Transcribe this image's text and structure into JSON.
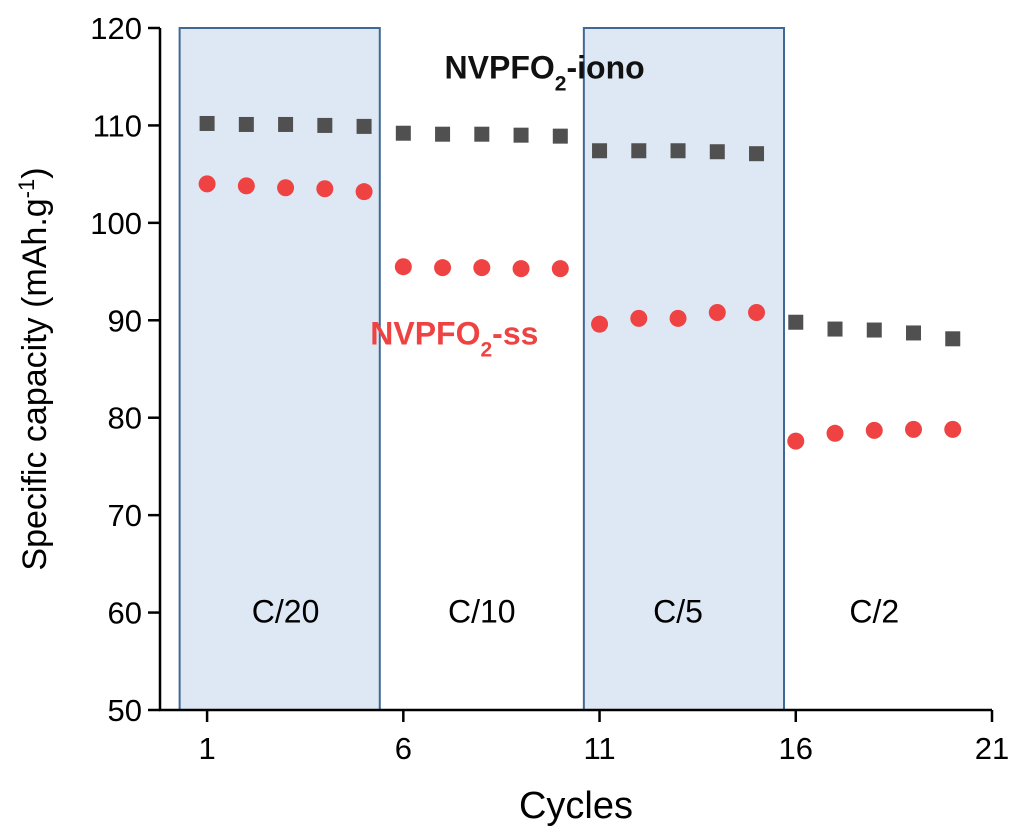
{
  "chart_data": {
    "type": "scatter",
    "xlabel": "Cycles",
    "ylabel": "Specific capacity (mAh.g",
    "ylabel_sup": "-1",
    "ylabel_close": ")",
    "xlim": [
      -0.2,
      21
    ],
    "ylim": [
      50,
      120
    ],
    "xticks": [
      1,
      6,
      11,
      16,
      21
    ],
    "yticks": [
      50,
      60,
      70,
      80,
      90,
      100,
      110,
      120
    ],
    "bands": [
      {
        "x0": 0.3,
        "x1": 5.4,
        "shaded": true,
        "label": "C/20",
        "label_x": 3.0
      },
      {
        "x0": 5.4,
        "x1": 10.6,
        "shaded": false,
        "label": "C/10",
        "label_x": 8.0
      },
      {
        "x0": 10.6,
        "x1": 15.7,
        "shaded": true,
        "label": "C/5",
        "label_x": 13.0
      },
      {
        "x0": 15.7,
        "x1": 21,
        "shaded": false,
        "label": "C/2",
        "label_x": 18.0
      }
    ],
    "band_label_y": 59,
    "series": [
      {
        "name": "NVPFO",
        "sub": "2",
        "suffix": "-iono",
        "marker": "square",
        "color": "#505050",
        "label_at": [
          9.6,
          114.8
        ],
        "x": [
          1,
          2,
          3,
          4,
          5,
          6,
          7,
          8,
          9,
          10,
          11,
          12,
          13,
          14,
          15,
          16,
          17,
          18,
          19,
          20
        ],
        "y": [
          110.2,
          110.1,
          110.1,
          110.0,
          109.9,
          109.2,
          109.1,
          109.1,
          109.0,
          108.9,
          107.4,
          107.4,
          107.4,
          107.3,
          107.1,
          89.8,
          89.1,
          89.0,
          88.7,
          88.1
        ]
      },
      {
        "name": "NVPFO",
        "sub": "2",
        "suffix": "-ss",
        "marker": "circle",
        "color": "#ef4343",
        "label_at": [
          7.3,
          87.5
        ],
        "x": [
          1,
          2,
          3,
          4,
          5,
          6,
          7,
          8,
          9,
          10,
          11,
          12,
          13,
          14,
          15,
          16,
          17,
          18,
          19,
          20
        ],
        "y": [
          104.0,
          103.8,
          103.6,
          103.5,
          103.2,
          95.5,
          95.4,
          95.4,
          95.3,
          95.3,
          89.6,
          90.2,
          90.2,
          90.8,
          90.8,
          77.6,
          78.4,
          78.7,
          78.8,
          78.8
        ]
      }
    ],
    "colors": {
      "band_fill": "#dde8f4",
      "band_edge": "#3f6894",
      "axis": "#000000"
    }
  }
}
